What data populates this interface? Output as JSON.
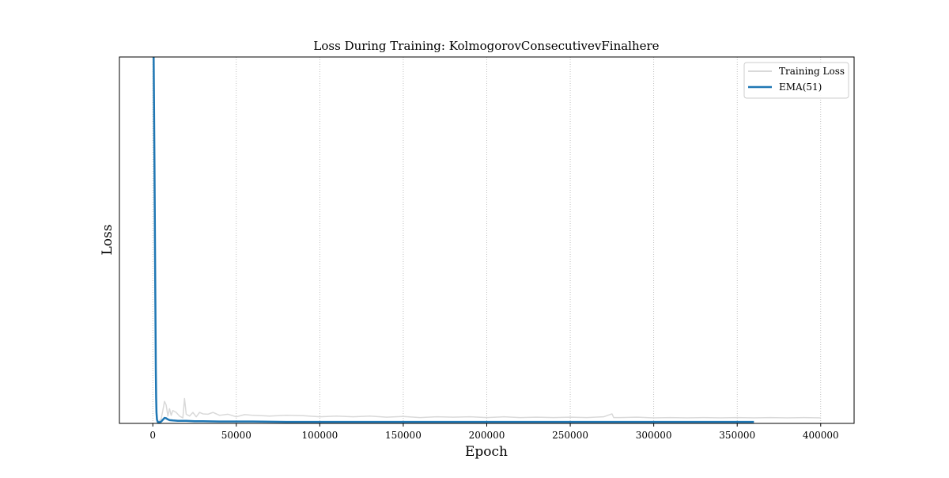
{
  "chart_data": {
    "type": "line",
    "title": "Loss During Training: KolmogorovConsecutivevFinalhere",
    "xlabel": "Epoch",
    "ylabel": "Loss",
    "xlim": [
      -20000,
      420000
    ],
    "ylim": [
      0,
      1
    ],
    "x_ticks": [
      0,
      50000,
      100000,
      150000,
      200000,
      250000,
      300000,
      350000,
      400000
    ],
    "x_tick_labels": [
      "0",
      "50000",
      "100000",
      "150000",
      "200000",
      "250000",
      "300000",
      "350000",
      "400000"
    ],
    "y_ticks_shown": false,
    "grid": "x-axis dotted vertical lines",
    "legend_position": "top-right",
    "series": [
      {
        "name": "Training Loss",
        "color": "#d9d9d9",
        "x": [
          0,
          1000,
          1800,
          2200,
          2600,
          3000,
          3600,
          4000,
          5000,
          6000,
          7000,
          8000,
          9000,
          10000,
          11000,
          12000,
          14000,
          16000,
          18000,
          19000,
          20000,
          22000,
          24000,
          26000,
          28000,
          30000,
          33000,
          36000,
          40000,
          45000,
          50000,
          55000,
          60000,
          70000,
          80000,
          90000,
          100000,
          110000,
          120000,
          130000,
          140000,
          150000,
          160000,
          170000,
          180000,
          190000,
          200000,
          210000,
          220000,
          230000,
          240000,
          250000,
          260000,
          270000,
          275000,
          276000,
          280000,
          290000,
          300000,
          310000,
          320000,
          330000,
          340000,
          350000,
          360000,
          370000,
          380000,
          390000,
          400000
        ],
        "values": [
          1.1,
          0.55,
          0.1,
          0.02,
          0.003,
          0.002,
          0.004,
          0.008,
          0.012,
          0.035,
          0.06,
          0.05,
          0.02,
          0.04,
          0.022,
          0.035,
          0.03,
          0.02,
          0.015,
          0.068,
          0.025,
          0.02,
          0.03,
          0.018,
          0.03,
          0.026,
          0.025,
          0.03,
          0.022,
          0.025,
          0.018,
          0.024,
          0.022,
          0.02,
          0.022,
          0.021,
          0.018,
          0.02,
          0.018,
          0.02,
          0.017,
          0.019,
          0.016,
          0.018,
          0.017,
          0.018,
          0.016,
          0.018,
          0.016,
          0.017,
          0.016,
          0.017,
          0.016,
          0.018,
          0.026,
          0.016,
          0.016,
          0.017,
          0.015,
          0.016,
          0.015,
          0.016,
          0.015,
          0.016,
          0.015,
          0.016,
          0.015,
          0.016,
          0.015
        ]
      },
      {
        "name": "EMA(51)",
        "color": "#1f77b4",
        "x": [
          0,
          500,
          1000,
          1500,
          1800,
          2000,
          2200,
          2500,
          3000,
          4000,
          5000,
          6000,
          7000,
          8000,
          9000,
          10000,
          12000,
          15000,
          20000,
          25000,
          30000,
          40000,
          50000,
          60000,
          80000,
          100000,
          150000,
          200000,
          250000,
          300000,
          350000,
          360000
        ],
        "values": [
          1.1,
          1.0,
          0.7,
          0.35,
          0.15,
          0.07,
          0.03,
          0.01,
          0.004,
          0.003,
          0.005,
          0.01,
          0.015,
          0.014,
          0.011,
          0.009,
          0.008,
          0.007,
          0.007,
          0.006,
          0.006,
          0.005,
          0.005,
          0.005,
          0.004,
          0.004,
          0.004,
          0.004,
          0.004,
          0.004,
          0.004,
          0.004
        ]
      }
    ]
  }
}
